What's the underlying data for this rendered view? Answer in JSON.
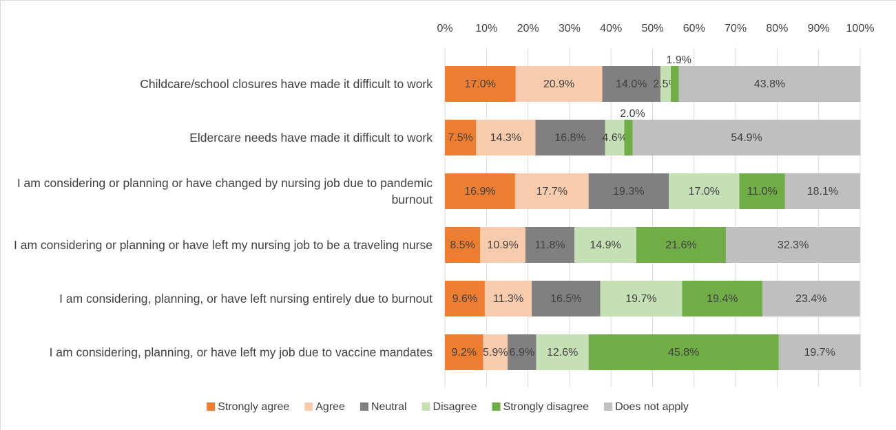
{
  "chart_data": {
    "type": "bar",
    "orientation": "horizontal",
    "stacked": true,
    "categories": [
      "Childcare/school closures have made it difficult to work",
      "Eldercare needs have made it difficult to work",
      "I am considering or planning or have changed by nursing job due to pandemic burnout",
      "I am considering or planning or have left my nursing job to be a traveling nurse",
      "I am considering, planning, or have left nursing entirely due to burnout",
      "I am considering, planning, or have left my job due to vaccine mandates"
    ],
    "series": [
      {
        "name": "Strongly agree",
        "color": "#ED7D31",
        "values": [
          17.0,
          7.5,
          16.9,
          8.5,
          9.6,
          9.2
        ],
        "value_labels": [
          "17.0%",
          "7.5%",
          "16.9%",
          "8.5%",
          "9.6%",
          "9.2%"
        ]
      },
      {
        "name": "Agree",
        "color": "#F8CBAD",
        "values": [
          20.9,
          14.3,
          17.7,
          10.9,
          11.3,
          5.9
        ],
        "value_labels": [
          "20.9%",
          "14.3%",
          "17.7%",
          "10.9%",
          "11.3%",
          "5.9%"
        ]
      },
      {
        "name": "Neutral",
        "color": "#808080",
        "values": [
          14.0,
          16.8,
          19.3,
          11.8,
          16.5,
          6.9
        ],
        "value_labels": [
          "14.0%",
          "16.8%",
          "19.3%",
          "11.8%",
          "16.5%",
          "6.9%"
        ]
      },
      {
        "name": "Disagree",
        "color": "#C5E0B4",
        "values": [
          2.5,
          4.6,
          17.0,
          14.9,
          19.7,
          12.6
        ],
        "value_labels": [
          "2.5%",
          "4.6%",
          "17.0%",
          "14.9%",
          "19.7%",
          "12.6%"
        ]
      },
      {
        "name": "Strongly disagree",
        "color": "#70AD47",
        "values": [
          1.9,
          2.0,
          11.0,
          21.6,
          19.4,
          45.8
        ],
        "value_labels": [
          "1.9%",
          "2.0%",
          "11.0%",
          "21.6%",
          "19.4%",
          "45.8%"
        ]
      },
      {
        "name": "Does not apply",
        "color": "#BFBFBF",
        "values": [
          43.8,
          54.9,
          18.1,
          32.3,
          23.4,
          19.7
        ],
        "value_labels": [
          "43.8%",
          "54.9%",
          "18.1%",
          "32.3%",
          "23.4%",
          "19.7%"
        ]
      }
    ],
    "xlim": [
      0,
      100
    ],
    "xticks": [
      {
        "value": 0,
        "label": "0%"
      },
      {
        "value": 10,
        "label": "10%"
      },
      {
        "value": 20,
        "label": "20%"
      },
      {
        "value": 30,
        "label": "30%"
      },
      {
        "value": 40,
        "label": "40%"
      },
      {
        "value": 50,
        "label": "50%"
      },
      {
        "value": 60,
        "label": "60%"
      },
      {
        "value": 70,
        "label": "70%"
      },
      {
        "value": 80,
        "label": "80%"
      },
      {
        "value": 90,
        "label": "90%"
      },
      {
        "value": 100,
        "label": "100%"
      }
    ],
    "grid": true,
    "legend": "bottom"
  }
}
